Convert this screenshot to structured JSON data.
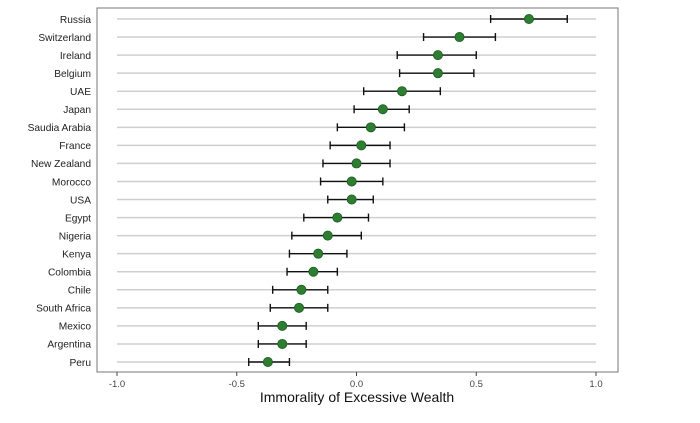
{
  "chart_data": {
    "type": "scatter",
    "title": "",
    "xlabel": "Immorality of Excessive Wealth",
    "ylabel": "",
    "xlim": [
      -1.0,
      1.0
    ],
    "xticks": [
      -1.0,
      -0.5,
      0.0,
      0.5,
      1.0
    ],
    "xtick_labels": [
      "-1.0",
      "-0.5",
      "0.0",
      "0.5",
      "1.0"
    ],
    "grid": true,
    "categories": [
      "Russia",
      "Switzerland",
      "Ireland",
      "Belgium",
      "UAE",
      "Japan",
      "Saudia Arabia",
      "France",
      "New Zealand",
      "Morocco",
      "USA",
      "Egypt",
      "Nigeria",
      "Kenya",
      "Colombia",
      "Chile",
      "South Africa",
      "Mexico",
      "Argentina",
      "Peru"
    ],
    "values": [
      0.72,
      0.43,
      0.34,
      0.34,
      0.19,
      0.11,
      0.06,
      0.02,
      0.0,
      -0.02,
      -0.02,
      -0.08,
      -0.12,
      -0.16,
      -0.18,
      -0.23,
      -0.24,
      -0.31,
      -0.31,
      -0.37
    ],
    "ci_lower": [
      0.56,
      0.28,
      0.17,
      0.18,
      0.03,
      -0.01,
      -0.08,
      -0.11,
      -0.14,
      -0.15,
      -0.12,
      -0.22,
      -0.27,
      -0.28,
      -0.29,
      -0.35,
      -0.36,
      -0.41,
      -0.41,
      -0.45
    ],
    "ci_upper": [
      0.88,
      0.58,
      0.5,
      0.49,
      0.35,
      0.22,
      0.2,
      0.14,
      0.14,
      0.11,
      0.07,
      0.05,
      0.02,
      -0.04,
      -0.08,
      -0.12,
      -0.12,
      -0.21,
      -0.21,
      -0.28
    ],
    "colors": {
      "point": "#2e7d32",
      "point_edge": "#1b5e20",
      "errorbar": "#111111",
      "gridline": "#cfcfcf",
      "panel_border": "#777777",
      "text": "#222222"
    }
  }
}
